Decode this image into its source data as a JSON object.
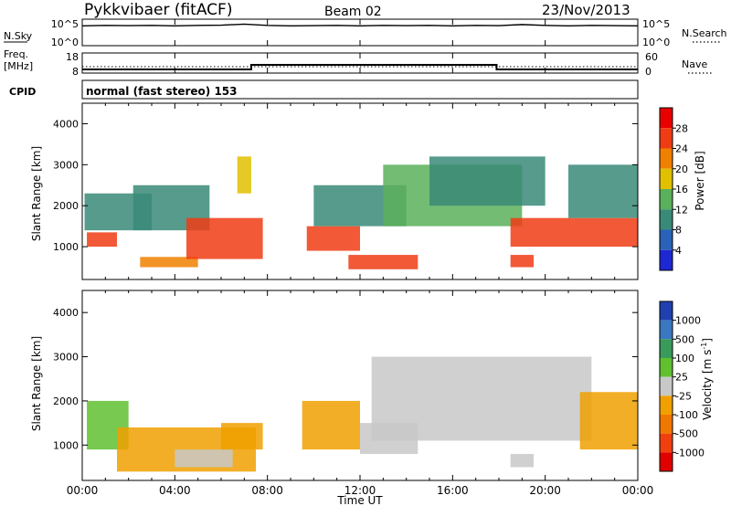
{
  "header": {
    "station": "Pykkvibaer (fitACF)",
    "beam": "Beam 02",
    "date": "23/Nov/2013"
  },
  "nsky_panel": {
    "left_label": "N.Sky",
    "left_ticks": [
      "10^5",
      "10^0"
    ],
    "right_ticks": [
      "10^5",
      "10^0"
    ],
    "right_label": "N.Search",
    "series": [
      {
        "x": 0,
        "y": 4.1
      },
      {
        "x": 1,
        "y": 4.2
      },
      {
        "x": 2,
        "y": 4.15
      },
      {
        "x": 3,
        "y": 4.2
      },
      {
        "x": 4,
        "y": 4.1
      },
      {
        "x": 5,
        "y": 4.2
      },
      {
        "x": 6,
        "y": 4.25
      },
      {
        "x": 7,
        "y": 4.5
      },
      {
        "x": 8,
        "y": 4.2
      },
      {
        "x": 9,
        "y": 4.1
      },
      {
        "x": 10,
        "y": 4.15
      },
      {
        "x": 11,
        "y": 4.2
      },
      {
        "x": 12,
        "y": 4.1
      },
      {
        "x": 13,
        "y": 4.2
      },
      {
        "x": 14,
        "y": 4.15
      },
      {
        "x": 15,
        "y": 4.2
      },
      {
        "x": 16,
        "y": 4.1
      },
      {
        "x": 17,
        "y": 4.2
      },
      {
        "x": 18,
        "y": 4.15
      },
      {
        "x": 19,
        "y": 4.4
      },
      {
        "x": 20,
        "y": 4.2
      },
      {
        "x": 21,
        "y": 4.1
      },
      {
        "x": 22,
        "y": 4.2
      },
      {
        "x": 23,
        "y": 4.15
      },
      {
        "x": 24,
        "y": 4.1
      }
    ]
  },
  "freq_panel": {
    "left_label_1": "Freq.",
    "left_label_2": "[MHz]",
    "left_ticks": [
      "18",
      "8"
    ],
    "right_ticks": [
      "60",
      "0"
    ],
    "right_label": "Nave",
    "freq_series": [
      {
        "x": 0,
        "y": 9.5
      },
      {
        "x": 3.5,
        "y": 9.5
      },
      {
        "x": 7.3,
        "y": 9.5
      },
      {
        "x": 7.3,
        "y": 12
      },
      {
        "x": 17.9,
        "y": 12
      },
      {
        "x": 17.9,
        "y": 9.5
      },
      {
        "x": 24,
        "y": 9.5
      }
    ],
    "nave_level": 18
  },
  "cpid_panel": {
    "label": "CPID",
    "text": "normal (fast stereo) 153"
  },
  "power_panel": {
    "ylabel": "Slant Range [km]",
    "yticks": [
      "1000",
      "2000",
      "3000",
      "4000"
    ],
    "colorbar_label": "Power [dB]",
    "colorbar_ticks": [
      "4",
      "8",
      "12",
      "16",
      "20",
      "24",
      "28"
    ],
    "colors": [
      "#1e28d2",
      "#2a62b8",
      "#3a8a78",
      "#5bb05b",
      "#e0c000",
      "#f08000",
      "#f03c14",
      "#e80000"
    ]
  },
  "velocity_panel": {
    "ylabel": "Slant Range [km]",
    "yticks": [
      "1000",
      "2000",
      "3000",
      "4000"
    ],
    "colorbar_label": "Velocity [m s",
    "colorbar_sup": "-1",
    "colorbar_label_end": "]",
    "colorbar_ticks": [
      "1000",
      "500",
      "100",
      "25",
      "-25",
      "-100",
      "-500",
      "-1000"
    ],
    "colors": [
      "#2040b0",
      "#3a78c0",
      "#3a9a5a",
      "#60c030",
      "#c8c8c8",
      "#f0a000",
      "#f07800",
      "#f04010",
      "#e00000"
    ]
  },
  "x_axis": {
    "ticks": [
      "00:00",
      "04:00",
      "08:00",
      "12:00",
      "16:00",
      "20:00",
      "00:00"
    ],
    "label": "Time UT"
  },
  "chart_data": {
    "type": "heatmap",
    "title": "Pykkvibaer (fitACF) Beam 02 23/Nov/2013",
    "xlabel": "Time UT",
    "ylabel": "Slant Range [km]",
    "xlim": [
      0,
      24
    ],
    "ylim": [
      200,
      4500
    ],
    "grid": false,
    "series": [
      {
        "name": "Power [dB]",
        "zlim": [
          0,
          32
        ],
        "blobs": [
          {
            "t0": 0.2,
            "t1": 1.5,
            "r0": 1000,
            "r1": 1350,
            "z": 26
          },
          {
            "t0": 0.1,
            "t1": 3.0,
            "r0": 1400,
            "r1": 2300,
            "z": 10
          },
          {
            "t0": 2.2,
            "t1": 5.5,
            "r0": 1400,
            "r1": 2500,
            "z": 8
          },
          {
            "t0": 2.5,
            "t1": 5.0,
            "r0": 500,
            "r1": 750,
            "z": 22
          },
          {
            "t0": 4.5,
            "t1": 7.8,
            "r0": 700,
            "r1": 1700,
            "z": 27
          },
          {
            "t0": 6.7,
            "t1": 7.3,
            "r0": 2300,
            "r1": 3200,
            "z": 18
          },
          {
            "t0": 9.7,
            "t1": 12.0,
            "r0": 900,
            "r1": 1500,
            "z": 25
          },
          {
            "t0": 10.0,
            "t1": 14.0,
            "r0": 1500,
            "r1": 2500,
            "z": 11
          },
          {
            "t0": 11.5,
            "t1": 14.5,
            "r0": 450,
            "r1": 800,
            "z": 25
          },
          {
            "t0": 13.0,
            "t1": 19.0,
            "r0": 1500,
            "r1": 3000,
            "z": 12
          },
          {
            "t0": 15.0,
            "t1": 20.0,
            "r0": 2000,
            "r1": 3200,
            "z": 10
          },
          {
            "t0": 18.5,
            "t1": 19.5,
            "r0": 500,
            "r1": 800,
            "z": 24
          },
          {
            "t0": 18.5,
            "t1": 24.0,
            "r0": 1000,
            "r1": 1700,
            "z": 24
          },
          {
            "t0": 21.0,
            "t1": 24.0,
            "r0": 1700,
            "r1": 3000,
            "z": 9
          }
        ]
      },
      {
        "name": "Velocity [m s-1]",
        "zlim": [
          -1000,
          1000
        ],
        "blobs": [
          {
            "t0": 0.2,
            "t1": 2.0,
            "r0": 900,
            "r1": 2000,
            "z": 200
          },
          {
            "t0": 1.5,
            "t1": 7.5,
            "r0": 400,
            "r1": 1400,
            "z": -150
          },
          {
            "t0": 4.0,
            "t1": 6.5,
            "r0": 500,
            "r1": 900,
            "z": -60
          },
          {
            "t0": 6.0,
            "t1": 7.8,
            "r0": 900,
            "r1": 1500,
            "z": -300
          },
          {
            "t0": 9.5,
            "t1": 12.0,
            "r0": 900,
            "r1": 2000,
            "z": -120
          },
          {
            "t0": 12.0,
            "t1": 14.5,
            "r0": 800,
            "r1": 1500,
            "z": 60
          },
          {
            "t0": 12.5,
            "t1": 22.0,
            "r0": 1100,
            "r1": 3000,
            "z": 0
          },
          {
            "t0": 18.5,
            "t1": 19.5,
            "r0": 500,
            "r1": 800,
            "z": 80
          },
          {
            "t0": 21.5,
            "t1": 24.0,
            "r0": 900,
            "r1": 2200,
            "z": -200
          }
        ]
      }
    ]
  }
}
